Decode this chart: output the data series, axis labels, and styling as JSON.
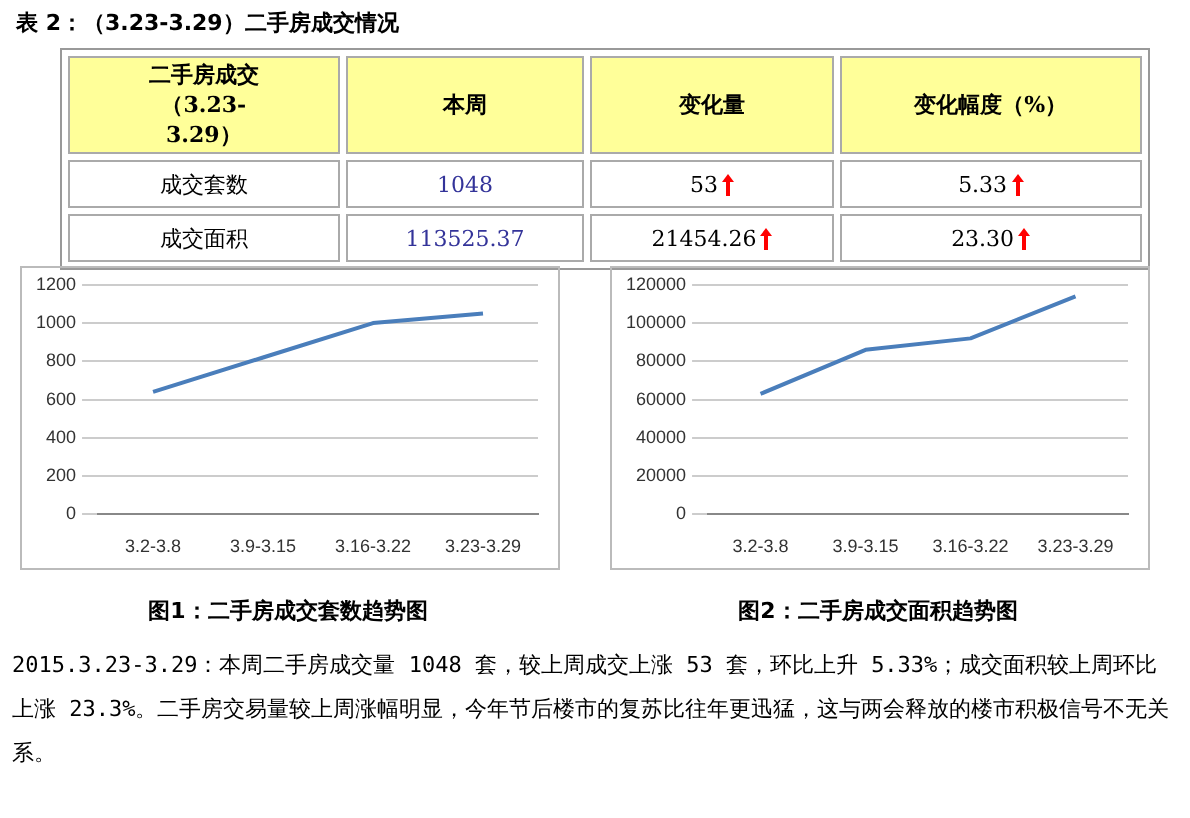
{
  "chart_data": [
    {
      "type": "other",
      "title": "表 2：（3.23-3.29）二手房成交情况",
      "annotations": [
        "二手房成交（3.23-3.29）",
        "本周",
        "变化量",
        "变化幅度（%）",
        "成交套数",
        "1048",
        "53",
        "5.33",
        "成交面积",
        "113525.37",
        "21454.26",
        "23.30"
      ]
    },
    {
      "type": "line",
      "title": "图1：二手房成交套数趋势图",
      "categories": [
        "3.2-3.8",
        "3.9-3.15",
        "3.16-3.22",
        "3.23-3.29"
      ],
      "series": [
        {
          "color": "#4a7ebb",
          "values": [
            640,
            820,
            1000,
            1050
          ]
        }
      ],
      "ylim": [
        0,
        1200
      ],
      "yticks": [
        0,
        200,
        400,
        600,
        800,
        1000,
        1200
      ],
      "grid": "y",
      "legend": false,
      "marker": "none"
    },
    {
      "type": "line",
      "title": "图2：二手房成交面积趋势图",
      "categories": [
        "3.2-3.8",
        "3.9-3.15",
        "3.16-3.22",
        "3.23-3.29"
      ],
      "series": [
        {
          "color": "#4a7ebb",
          "values": [
            63000,
            86000,
            92000,
            114000
          ]
        }
      ],
      "ylim": [
        0,
        120000
      ],
      "yticks": [
        0,
        20000,
        40000,
        60000,
        80000,
        100000,
        120000
      ],
      "grid": "y",
      "legend": false,
      "marker": "none"
    },
    {
      "type": "other",
      "annotations": [
        "2015.3.23-3.29：本周二手房成交量 1048 套，较上周成交上涨 53 套，环比上升 5.33%；成交面积较上周环比上涨 23.3%。二手房交易量较上周涨幅明显，今年节后楼市的复苏比往年更迅猛，这与两会释放的楼市积极信号不无关系。"
      ]
    }
  ]
}
